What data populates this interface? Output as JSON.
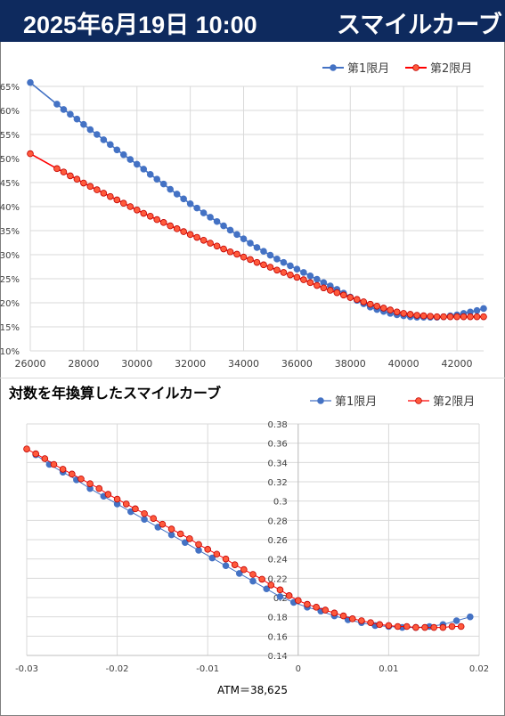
{
  "header": {
    "date": "2025年6月19日 10:00",
    "name": "スマイルカーブ"
  },
  "colors": {
    "series1": "#4472c4",
    "series2": "#ff0000",
    "series2_marker": "#ff5a3c",
    "title_bg": "#0e2a5e",
    "grid": "#d9d9d9"
  },
  "chart_data": [
    {
      "type": "line",
      "title": "",
      "xlabel": "",
      "ylabel": "",
      "xlim": [
        26000,
        43000
      ],
      "ylim": [
        10,
        65
      ],
      "x_ticks": [
        26000,
        28000,
        30000,
        32000,
        34000,
        36000,
        38000,
        40000,
        42000
      ],
      "x_tick_labels": [
        "26000",
        "28000",
        "30000",
        "32000",
        "34000",
        "36000",
        "38000",
        "40000",
        "42000"
      ],
      "y_ticks": [
        10,
        15,
        20,
        25,
        30,
        35,
        40,
        45,
        50,
        55,
        60,
        65
      ],
      "y_tick_labels": [
        "10%",
        "15%",
        "20%",
        "25%",
        "30%",
        "35%",
        "40%",
        "45%",
        "50%",
        "55%",
        "60%",
        "65%"
      ],
      "grid": true,
      "legend": "top-right",
      "series": [
        {
          "name": "第1限月",
          "color": "#4472c4",
          "x": [
            26000,
            27000,
            27250,
            27500,
            27750,
            28000,
            28250,
            28500,
            28750,
            29000,
            29250,
            29500,
            29750,
            30000,
            30250,
            30500,
            30750,
            31000,
            31250,
            31500,
            31750,
            32000,
            32250,
            32500,
            32750,
            33000,
            33250,
            33500,
            33750,
            34000,
            34250,
            34500,
            34750,
            35000,
            35250,
            35500,
            35750,
            36000,
            36250,
            36500,
            36750,
            37000,
            37250,
            37500,
            37750,
            38000,
            38250,
            38500,
            38750,
            39000,
            39250,
            39500,
            39750,
            40000,
            40250,
            40500,
            40750,
            41000,
            41250,
            41500,
            41750,
            42000,
            42250,
            42500,
            42750,
            43000
          ],
          "y": [
            65.8,
            61.3,
            60.2,
            59.2,
            58.2,
            57.1,
            56.0,
            55.0,
            53.9,
            52.9,
            51.8,
            50.8,
            49.8,
            48.8,
            47.8,
            46.7,
            45.7,
            44.7,
            43.6,
            42.6,
            41.6,
            40.6,
            39.7,
            38.7,
            37.8,
            36.9,
            36.0,
            35.1,
            34.2,
            33.3,
            32.4,
            31.5,
            30.7,
            29.9,
            29.1,
            28.4,
            27.7,
            27.0,
            26.3,
            25.6,
            24.9,
            24.2,
            23.5,
            22.8,
            22.0,
            21.2,
            20.5,
            19.8,
            19.1,
            18.6,
            18.2,
            17.8,
            17.5,
            17.3,
            17.1,
            17.0,
            17.0,
            17.0,
            17.0,
            17.1,
            17.3,
            17.5,
            17.8,
            18.1,
            18.4,
            18.8
          ]
        },
        {
          "name": "第2限月",
          "color": "#ff0000",
          "x": [
            26000,
            27000,
            27250,
            27500,
            27750,
            28000,
            28250,
            28500,
            28750,
            29000,
            29250,
            29500,
            29750,
            30000,
            30250,
            30500,
            30750,
            31000,
            31250,
            31500,
            31750,
            32000,
            32250,
            32500,
            32750,
            33000,
            33250,
            33500,
            33750,
            34000,
            34250,
            34500,
            34750,
            35000,
            35250,
            35500,
            35750,
            36000,
            36250,
            36500,
            36750,
            37000,
            37250,
            37500,
            37750,
            38000,
            38250,
            38500,
            38750,
            39000,
            39250,
            39500,
            39750,
            40000,
            40250,
            40500,
            40750,
            41000,
            41250,
            41500,
            41750,
            42000,
            42250,
            42500,
            42750,
            43000
          ],
          "y": [
            51.0,
            47.9,
            47.2,
            46.4,
            45.7,
            44.9,
            44.2,
            43.5,
            42.8,
            42.1,
            41.4,
            40.7,
            40.0,
            39.3,
            38.6,
            38.0,
            37.3,
            36.7,
            36.0,
            35.4,
            34.8,
            34.2,
            33.6,
            33.0,
            32.4,
            31.8,
            31.2,
            30.6,
            30.1,
            29.5,
            29.0,
            28.4,
            27.9,
            27.4,
            26.8,
            26.3,
            25.8,
            25.3,
            24.8,
            24.2,
            23.6,
            23.1,
            22.6,
            22.1,
            21.6,
            21.1,
            20.7,
            20.2,
            19.7,
            19.3,
            18.9,
            18.5,
            18.1,
            17.8,
            17.6,
            17.4,
            17.3,
            17.2,
            17.1,
            17.1,
            17.1,
            17.1,
            17.1,
            17.1,
            17.1,
            17.1
          ]
        }
      ]
    },
    {
      "type": "line",
      "title": "対数を年換算したスマイルカーブ",
      "xlabel": "ATM＝38,625",
      "ylabel": "",
      "xlim": [
        -0.03,
        0.02
      ],
      "ylim": [
        0.14,
        0.38
      ],
      "x_ticks": [
        -0.03,
        -0.02,
        -0.01,
        0,
        0.01,
        0.02
      ],
      "x_tick_labels": [
        "-0.03",
        "-0.02",
        "-0.01",
        "0",
        "0.01",
        "0.02"
      ],
      "y_ticks": [
        0.14,
        0.16,
        0.18,
        0.2,
        0.22,
        0.24,
        0.26,
        0.28,
        0.3,
        0.32,
        0.34,
        0.36,
        0.38
      ],
      "y_tick_labels": [
        "0.14",
        "0.16",
        "0.18",
        "0.2",
        "0.22",
        "0.24",
        "0.26",
        "0.28",
        "0.3",
        "0.32",
        "0.34",
        "0.36",
        "0.38"
      ],
      "grid": true,
      "legend": "top-right",
      "series": [
        {
          "name": "第1限月",
          "color": "#4472c4",
          "x": [
            -0.029,
            -0.0275,
            -0.026,
            -0.0245,
            -0.023,
            -0.0215,
            -0.02,
            -0.0185,
            -0.017,
            -0.0155,
            -0.014,
            -0.0125,
            -0.011,
            -0.0095,
            -0.008,
            -0.0065,
            -0.005,
            -0.0035,
            -0.002,
            -0.0005,
            0.001,
            0.0025,
            0.004,
            0.0055,
            0.007,
            0.0085,
            0.01,
            0.0115,
            0.013,
            0.0145,
            0.016,
            0.0175,
            0.019
          ],
          "y": [
            0.348,
            0.338,
            0.33,
            0.322,
            0.313,
            0.305,
            0.297,
            0.289,
            0.281,
            0.273,
            0.265,
            0.257,
            0.249,
            0.241,
            0.233,
            0.225,
            0.217,
            0.209,
            0.201,
            0.195,
            0.19,
            0.186,
            0.181,
            0.177,
            0.174,
            0.171,
            0.17,
            0.169,
            0.169,
            0.17,
            0.172,
            0.176,
            0.18
          ]
        },
        {
          "name": "第2限月",
          "color": "#ff0000",
          "x": [
            -0.03,
            -0.029,
            -0.028,
            -0.027,
            -0.026,
            -0.025,
            -0.024,
            -0.023,
            -0.022,
            -0.021,
            -0.02,
            -0.019,
            -0.018,
            -0.017,
            -0.016,
            -0.015,
            -0.014,
            -0.013,
            -0.012,
            -0.011,
            -0.01,
            -0.009,
            -0.008,
            -0.007,
            -0.006,
            -0.005,
            -0.004,
            -0.003,
            -0.002,
            -0.001,
            0.0,
            0.001,
            0.002,
            0.003,
            0.004,
            0.005,
            0.006,
            0.007,
            0.008,
            0.009,
            0.01,
            0.011,
            0.012,
            0.013,
            0.014,
            0.015,
            0.016,
            0.017,
            0.018
          ],
          "y": [
            0.354,
            0.349,
            0.344,
            0.338,
            0.333,
            0.328,
            0.323,
            0.318,
            0.313,
            0.307,
            0.302,
            0.297,
            0.292,
            0.287,
            0.282,
            0.276,
            0.271,
            0.266,
            0.261,
            0.255,
            0.25,
            0.245,
            0.24,
            0.234,
            0.229,
            0.224,
            0.219,
            0.213,
            0.208,
            0.202,
            0.197,
            0.193,
            0.19,
            0.187,
            0.184,
            0.181,
            0.178,
            0.176,
            0.174,
            0.172,
            0.171,
            0.17,
            0.17,
            0.169,
            0.169,
            0.169,
            0.169,
            0.17,
            0.17
          ]
        }
      ]
    }
  ]
}
